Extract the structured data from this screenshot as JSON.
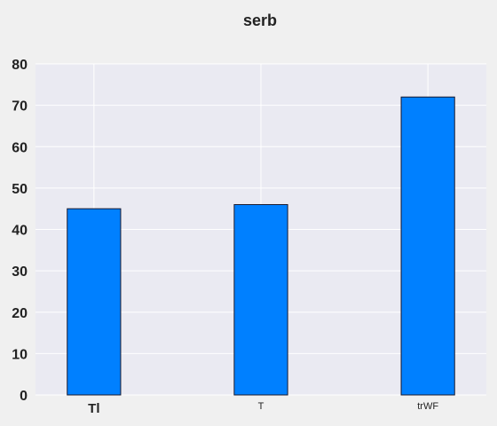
{
  "chart_data": {
    "type": "bar",
    "title": "serb",
    "categories": [
      "Tl",
      "T",
      "trWF"
    ],
    "values": [
      45,
      46,
      72
    ],
    "ylim": [
      0,
      80
    ],
    "yticks": [
      0,
      10,
      20,
      30,
      40,
      50,
      60,
      70,
      80
    ],
    "xlabel": "",
    "ylabel": "",
    "grid": true,
    "legend": "none",
    "colors": {
      "bar_fill": "#0080ff",
      "bar_edge": "#1a1a2e",
      "plot_background": "#eaeaf2",
      "grid": "#ffffff",
      "figure_background": "#f0f0f0",
      "text": "#222222"
    }
  }
}
